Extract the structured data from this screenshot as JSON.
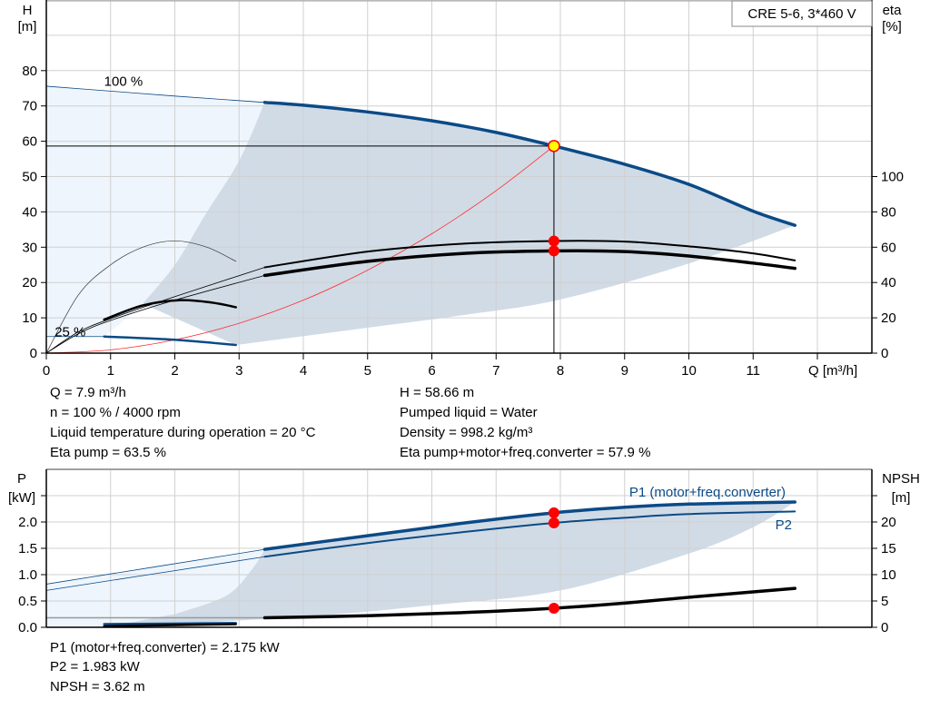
{
  "chart_data": [
    {
      "type": "line",
      "title_box": "CRE 5-6, 3*460 V",
      "xlabel": "Q [m³/h]",
      "ylabel_left": [
        "H",
        "[m]"
      ],
      "ylabel_right": [
        "eta",
        "[%]"
      ],
      "xlim": [
        0,
        12.7
      ],
      "ylim_left": [
        0,
        100
      ],
      "ylim_right": [
        0,
        200
      ],
      "x_ticks": [
        0,
        1,
        2,
        3,
        4,
        5,
        6,
        7,
        8,
        9,
        10,
        11
      ],
      "y_ticks_left": [
        0,
        10,
        20,
        30,
        40,
        50,
        60,
        70,
        80
      ],
      "y_ticks_right": [
        0,
        20,
        40,
        60,
        80,
        100
      ],
      "grid": true,
      "speed_labels": [
        {
          "text": "100 %",
          "Q": 0.9,
          "H": 77
        },
        {
          "text": "25 %",
          "Q": 0.13,
          "H": 6
        }
      ],
      "colors": {
        "head": "#0b4a86",
        "eta": "#000000",
        "system": "#ff3030",
        "dark_area": "#d0dbe6",
        "light_area": "#eef5fd",
        "point": "#ff0000",
        "duty_point": "#ffff00"
      },
      "head_100_thin": [
        [
          0,
          75.6
        ],
        [
          1,
          74.2
        ],
        [
          2,
          72.8
        ],
        [
          3.4,
          71
        ]
      ],
      "head_100": [
        [
          3.4,
          71
        ],
        [
          4,
          70.2
        ],
        [
          5,
          68.3
        ],
        [
          6,
          65.8
        ],
        [
          7,
          62.5
        ],
        [
          7.9,
          58.66
        ],
        [
          9,
          53.5
        ],
        [
          10,
          47.8
        ],
        [
          11,
          40.2
        ],
        [
          11.65,
          36.2
        ]
      ],
      "head_25_thin": [
        [
          0,
          4.7
        ],
        [
          0.9,
          4.7
        ]
      ],
      "head_25": [
        [
          0.9,
          4.7
        ],
        [
          2,
          3.8
        ],
        [
          2.95,
          2.3
        ]
      ],
      "area_lower_boundary": [
        [
          2.95,
          2.3
        ],
        [
          5,
          7.2
        ],
        [
          6.5,
          10.8
        ],
        [
          8,
          15.2
        ],
        [
          10,
          25.4
        ],
        [
          11.65,
          36.2
        ]
      ],
      "area_left_boundary": [
        [
          0.9,
          4.7
        ],
        [
          1.5,
          14
        ],
        [
          2,
          25
        ],
        [
          2.5,
          40
        ],
        [
          3,
          54.5
        ],
        [
          3.4,
          71
        ]
      ],
      "eta_pump_thin": [
        [
          0,
          0
        ],
        [
          0.5,
          12
        ],
        [
          1,
          19.5
        ],
        [
          2,
          32
        ],
        [
          3.4,
          48.6
        ]
      ],
      "eta_pump": [
        [
          3.4,
          48.6
        ],
        [
          5,
          57.5
        ],
        [
          6.5,
          62
        ],
        [
          7.9,
          63.5
        ],
        [
          9,
          63.2
        ],
        [
          10,
          60.5
        ],
        [
          11,
          56.5
        ],
        [
          11.65,
          52.5
        ]
      ],
      "eta_total_thin": [
        [
          0,
          0
        ],
        [
          0.5,
          11
        ],
        [
          1,
          18.5
        ],
        [
          2,
          30
        ],
        [
          3.4,
          44
        ]
      ],
      "eta_total": [
        [
          3.4,
          44
        ],
        [
          5,
          52
        ],
        [
          6.5,
          56.5
        ],
        [
          7.9,
          57.9
        ],
        [
          9,
          57.5
        ],
        [
          10,
          55
        ],
        [
          11,
          51
        ],
        [
          11.65,
          48
        ]
      ],
      "eta_pump_25": [
        [
          0,
          0
        ],
        [
          0.5,
          33
        ],
        [
          1,
          50
        ],
        [
          1.5,
          60
        ],
        [
          2,
          63.6
        ],
        [
          2.5,
          60
        ],
        [
          2.95,
          52
        ]
      ],
      "eta_total_25": [
        [
          0.9,
          19
        ],
        [
          1.5,
          27
        ],
        [
          2.1,
          30
        ],
        [
          2.6,
          28.5
        ],
        [
          2.95,
          26
        ]
      ],
      "system_curve": [
        [
          0,
          0
        ],
        [
          1,
          0.94
        ],
        [
          2,
          3.76
        ],
        [
          3,
          8.46
        ],
        [
          4,
          15
        ],
        [
          5,
          23.5
        ],
        [
          6,
          33.8
        ],
        [
          7,
          46
        ],
        [
          7.9,
          58.66
        ]
      ],
      "duty_point": {
        "Q": 7.9,
        "H": 58.66
      },
      "eta_points": [
        63.5,
        57.9
      ]
    },
    {
      "type": "line",
      "ylabel_left": [
        "P",
        "[kW]"
      ],
      "ylabel_right": [
        "NPSH",
        "[m]"
      ],
      "ylim_left": [
        0,
        3.0
      ],
      "ylim_right": [
        0,
        30
      ],
      "y_ticks_left": [
        "0.0",
        "0.5",
        "1.0",
        "1.5",
        "2.0"
      ],
      "y_ticks_right": [
        0,
        5,
        10,
        15,
        20
      ],
      "grid": true,
      "series_labels": {
        "p1": "P1 (motor+freq.converter)",
        "p2": "P2"
      },
      "p1_thin": [
        [
          0,
          0.82
        ],
        [
          3.4,
          1.48
        ]
      ],
      "p1": [
        [
          3.4,
          1.48
        ],
        [
          5,
          1.74
        ],
        [
          6.5,
          1.98
        ],
        [
          7.9,
          2.175
        ],
        [
          9,
          2.28
        ],
        [
          10,
          2.34
        ],
        [
          11.65,
          2.38
        ]
      ],
      "p2_thin": [
        [
          0,
          0.7
        ],
        [
          3.4,
          1.34
        ]
      ],
      "p2": [
        [
          3.4,
          1.34
        ],
        [
          5,
          1.6
        ],
        [
          6.5,
          1.81
        ],
        [
          7.9,
          1.983
        ],
        [
          9,
          2.08
        ],
        [
          10,
          2.15
        ],
        [
          11.65,
          2.2
        ]
      ],
      "p_25": [
        [
          0.9,
          0.06
        ],
        [
          2.95,
          0.08
        ]
      ],
      "npsh_thin": [
        [
          0,
          1.8
        ],
        [
          3.4,
          1.8
        ]
      ],
      "npsh": [
        [
          3.4,
          1.8
        ],
        [
          5,
          2.2
        ],
        [
          6.5,
          2.8
        ],
        [
          7.9,
          3.62
        ],
        [
          9,
          4.6
        ],
        [
          10,
          5.7
        ],
        [
          11.65,
          7.4
        ]
      ],
      "npsh_25": [
        [
          0.9,
          0.2
        ],
        [
          2.95,
          0.6
        ]
      ],
      "area_lower_boundary": [
        [
          0.9,
          0
        ],
        [
          4,
          0.2
        ],
        [
          6,
          0.42
        ],
        [
          8,
          0.7
        ],
        [
          10,
          1.4
        ],
        [
          11,
          1.9
        ],
        [
          11.65,
          2.38
        ]
      ],
      "area_left_boundary": [
        [
          0.9,
          0
        ],
        [
          2,
          0.25
        ],
        [
          2.8,
          0.6
        ],
        [
          3.2,
          1.1
        ],
        [
          3.4,
          1.48
        ]
      ],
      "duty_values": {
        "p1": 2.175,
        "p2": 1.983,
        "npsh": 3.62
      }
    }
  ],
  "info": {
    "q": "Q = 7.9 m³/h",
    "n": "n = 100 % / 4000 rpm",
    "temp": "Liquid temperature during operation = 20 °C",
    "eta_pump": "Eta pump = 63.5 %",
    "h": "H = 58.66 m",
    "liquid": "Pumped liquid = Water",
    "density": "Density = 998.2 kg/m³",
    "eta_total": "Eta pump+motor+freq.converter = 57.9 %",
    "p1": "P1 (motor+freq.converter) = 2.175 kW",
    "p2": "P2 = 1.983 kW",
    "npsh": "NPSH = 3.62 m"
  }
}
